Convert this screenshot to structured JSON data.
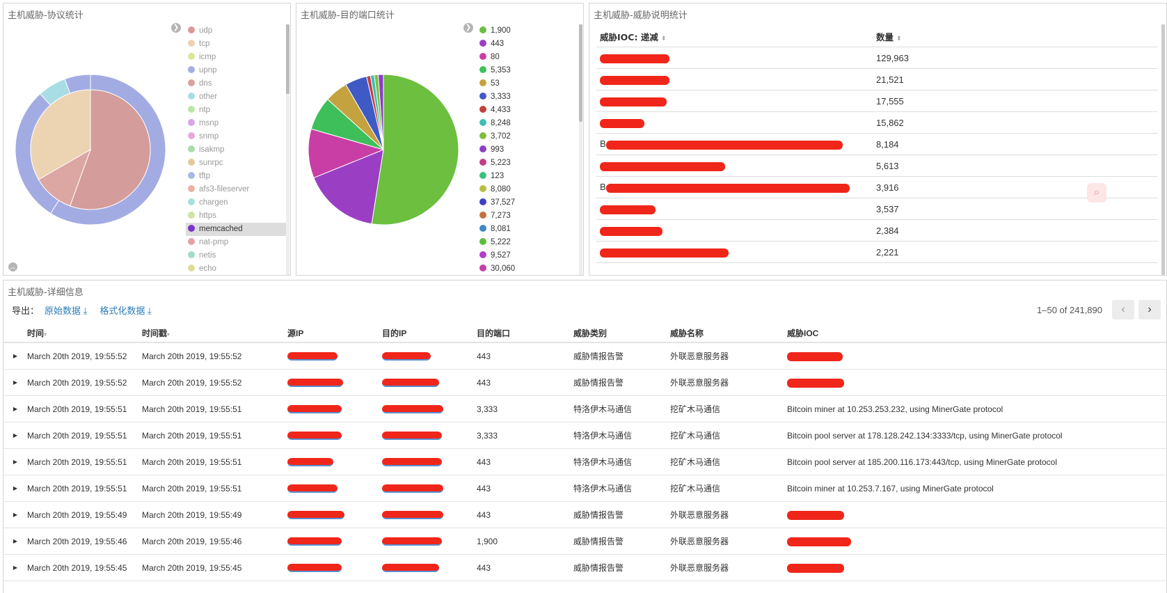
{
  "panels": {
    "protocol": {
      "title": "主机威胁-协议统计",
      "legend": [
        {
          "label": "udp",
          "color": "#d99a98"
        },
        {
          "label": "tcp",
          "color": "#ecd2b0"
        },
        {
          "label": "icmp",
          "color": "#d8e79a"
        },
        {
          "label": "upnp",
          "color": "#a4aee2"
        },
        {
          "label": "dns",
          "color": "#dca19f"
        },
        {
          "label": "other",
          "color": "#a8dde6"
        },
        {
          "label": "ntp",
          "color": "#bde4a4"
        },
        {
          "label": "msnp",
          "color": "#d8a6e6"
        },
        {
          "label": "snmp",
          "color": "#e6a9dc"
        },
        {
          "label": "isakmp",
          "color": "#a9dcac"
        },
        {
          "label": "sunrpc",
          "color": "#e2c99c"
        },
        {
          "label": "tftp",
          "color": "#a7b9e6"
        },
        {
          "label": "afs3-fileserver",
          "color": "#e6b3a4"
        },
        {
          "label": "chargen",
          "color": "#a9dfdc"
        },
        {
          "label": "https",
          "color": "#cfe4a0"
        },
        {
          "label": "memcached",
          "color": "#7a35c8"
        },
        {
          "label": "nat-pmp",
          "color": "#e6a1a8"
        },
        {
          "label": "netis",
          "color": "#a2dcc8"
        },
        {
          "label": "echo",
          "color": "#e0dc96"
        }
      ],
      "selected_legend": "memcached",
      "outer_colors": [
        "#a3ace2",
        "#a3ace2",
        "#a8dde6",
        "#a3ace2"
      ],
      "inner_colors": [
        "#d49c9a",
        "#dca6a2",
        "#bde0a3",
        "#e8c7a1",
        "#a8dde6",
        "#ecd3b2"
      ]
    },
    "port": {
      "title": "主机威胁-目的端口统计",
      "legend": [
        {
          "label": "1,900",
          "color": "#6cbf3f"
        },
        {
          "label": "443",
          "color": "#9a3fc4"
        },
        {
          "label": "80",
          "color": "#c93ea5"
        },
        {
          "label": "5,353",
          "color": "#3fbf5a"
        },
        {
          "label": "53",
          "color": "#c4a23f"
        },
        {
          "label": "3,333",
          "color": "#3f5ac4"
        },
        {
          "label": "4,433",
          "color": "#c43f3f"
        },
        {
          "label": "8,248",
          "color": "#3fbfb5"
        },
        {
          "label": "3,702",
          "color": "#7fbf3f"
        },
        {
          "label": "993",
          "color": "#8a3fc4"
        },
        {
          "label": "5,223",
          "color": "#c43f8a"
        },
        {
          "label": "123",
          "color": "#3fbf7f"
        },
        {
          "label": "8,080",
          "color": "#b5bf3f"
        },
        {
          "label": "37,527",
          "color": "#3f3fc4"
        },
        {
          "label": "7,273",
          "color": "#c4703f"
        },
        {
          "label": "8,081",
          "color": "#3f8ac4"
        },
        {
          "label": "5,222",
          "color": "#5abf3f"
        },
        {
          "label": "9,527",
          "color": "#b03fc4"
        },
        {
          "label": "30,060",
          "color": "#c43fa8"
        }
      ]
    },
    "ioc": {
      "title": "主机威胁-威胁说明统计",
      "col_ioc": "威胁IOC: 递减",
      "col_count": "数量",
      "rows": [
        {
          "ioc_visible": "",
          "count": "129,963"
        },
        {
          "ioc_visible": "",
          "count": "21,521"
        },
        {
          "ioc_visible": "",
          "count": "17,555"
        },
        {
          "ioc_visible": "",
          "count": "15,862"
        },
        {
          "ioc_visible": "B",
          "count": "8,184"
        },
        {
          "ioc_visible": "",
          "count": "5,613"
        },
        {
          "ioc_visible": "B",
          "count": "3,916"
        },
        {
          "ioc_visible": "",
          "count": "3,537"
        },
        {
          "ioc_visible": "",
          "count": "2,384"
        },
        {
          "ioc_visible": "",
          "count": "2,221"
        }
      ]
    }
  },
  "detail": {
    "title": "主机威胁-详细信息",
    "export_label": "导出：",
    "raw_label": "原始数据",
    "formatted_label": "格式化数据",
    "pagination": "1–50 of 241,890",
    "columns": {
      "time": "时间",
      "timestamp": "时间戳",
      "src_ip": "源IP",
      "dst_ip": "目的IP",
      "dst_port": "目的端口",
      "category": "威胁类别",
      "name": "威胁名称",
      "ioc": "威胁IOC"
    },
    "rows": [
      {
        "time": "March 20th 2019, 19:55:52",
        "timestamp": "March 20th 2019, 19:55:52",
        "port": "443",
        "category": "威胁情报告警",
        "name": "外联恶意服务器",
        "ioc": ""
      },
      {
        "time": "March 20th 2019, 19:55:52",
        "timestamp": "March 20th 2019, 19:55:52",
        "port": "443",
        "category": "威胁情报告警",
        "name": "外联恶意服务器",
        "ioc": ""
      },
      {
        "time": "March 20th 2019, 19:55:51",
        "timestamp": "March 20th 2019, 19:55:51",
        "port": "3,333",
        "category": "特洛伊木马通信",
        "name": "挖矿木马通信",
        "ioc": "Bitcoin miner at 10.253.253.232, using MinerGate protocol"
      },
      {
        "time": "March 20th 2019, 19:55:51",
        "timestamp": "March 20th 2019, 19:55:51",
        "port": "3,333",
        "category": "特洛伊木马通信",
        "name": "挖矿木马通信",
        "ioc": "Bitcoin pool server at 178.128.242.134:3333/tcp, using MinerGate protocol"
      },
      {
        "time": "March 20th 2019, 19:55:51",
        "timestamp": "March 20th 2019, 19:55:51",
        "port": "443",
        "category": "特洛伊木马通信",
        "name": "挖矿木马通信",
        "ioc": "Bitcoin pool server at 185.200.116.173:443/tcp, using MinerGate protocol"
      },
      {
        "time": "March 20th 2019, 19:55:51",
        "timestamp": "March 20th 2019, 19:55:51",
        "port": "443",
        "category": "特洛伊木马通信",
        "name": "挖矿木马通信",
        "ioc": "Bitcoin miner at 10.253.7.167, using MinerGate protocol"
      },
      {
        "time": "March 20th 2019, 19:55:49",
        "timestamp": "March 20th 2019, 19:55:49",
        "port": "443",
        "category": "威胁情报告警",
        "name": "外联恶意服务器",
        "ioc": ""
      },
      {
        "time": "March 20th 2019, 19:55:46",
        "timestamp": "March 20th 2019, 19:55:46",
        "port": "1,900",
        "category": "威胁情报告警",
        "name": "外联恶意服务器",
        "ioc": ""
      },
      {
        "time": "March 20th 2019, 19:55:45",
        "timestamp": "March 20th 2019, 19:55:45",
        "port": "443",
        "category": "威胁情报告警",
        "name": "外联恶意服务器",
        "ioc": ""
      }
    ]
  }
}
